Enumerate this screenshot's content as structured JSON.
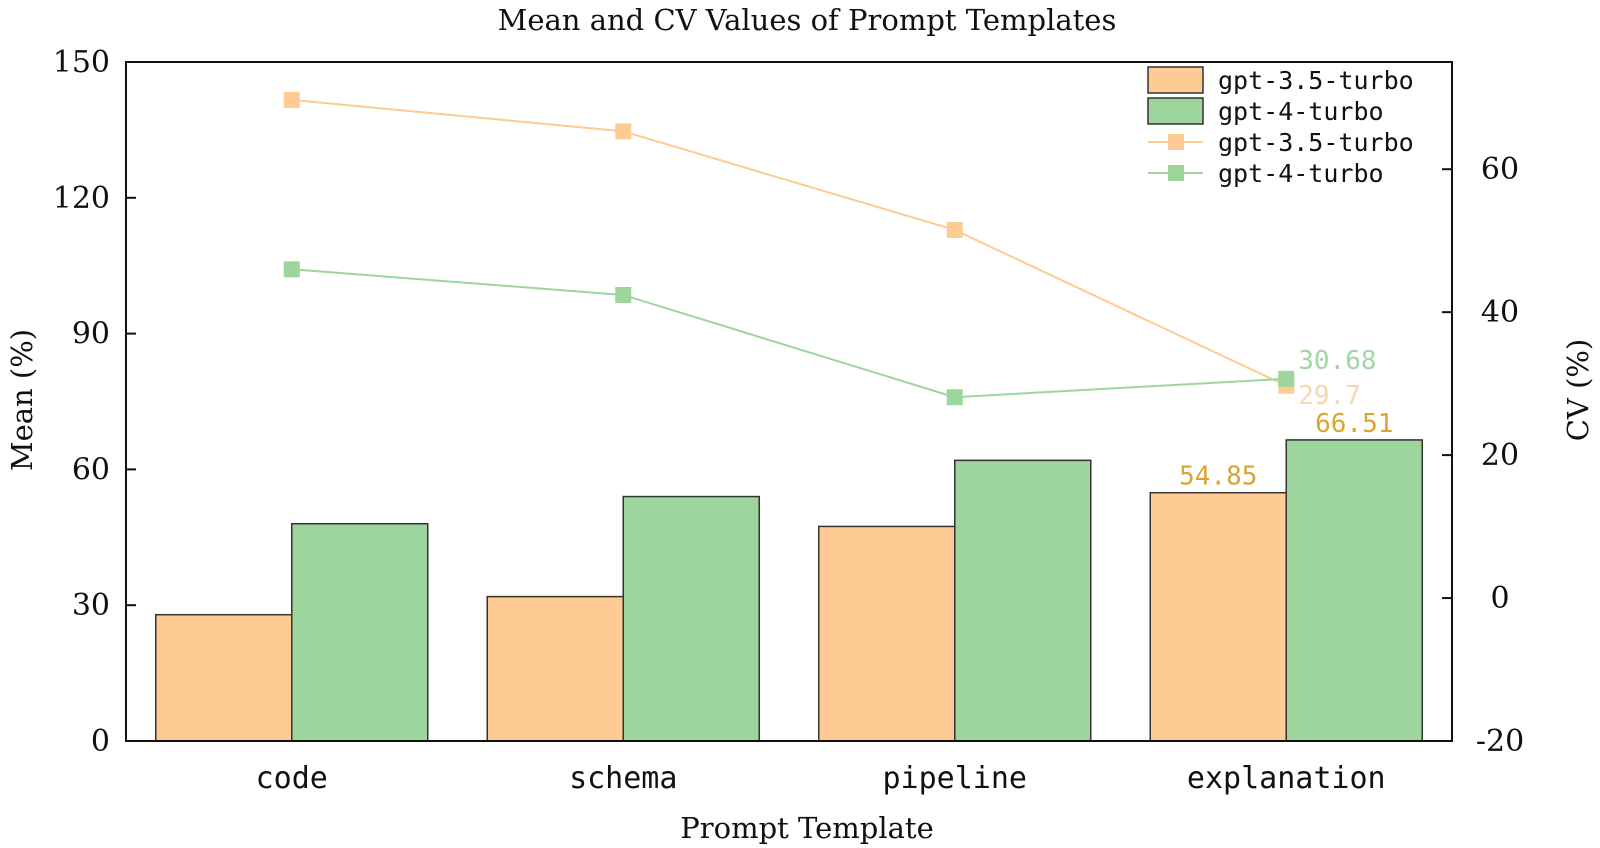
{
  "chart_data": {
    "type": "bar",
    "title": "Mean and CV Values of Prompt Templates",
    "xlabel": "Prompt Template",
    "ylabel": "Mean (%)",
    "y2label": "CV (%)",
    "categories": [
      "code",
      "schema",
      "pipeline",
      "explanation"
    ],
    "ylim": [
      0,
      150
    ],
    "yticks": [
      0,
      30,
      60,
      90,
      120,
      150
    ],
    "y2lim": [
      -20,
      75
    ],
    "y2ticks": [
      -20,
      0,
      20,
      40,
      60
    ],
    "bar_series": [
      {
        "name": "gpt-3.5-turbo",
        "values": [
          27.9,
          31.9,
          47.4,
          54.85
        ],
        "color": "#fdcb93"
      },
      {
        "name": "gpt-4-turbo",
        "values": [
          48.0,
          54.0,
          62.0,
          66.51
        ],
        "color": "#9dd59c"
      }
    ],
    "line_series": [
      {
        "name": "gpt-3.5-turbo",
        "values": [
          69.7,
          65.3,
          51.5,
          29.7
        ],
        "color": "#fdcb93"
      },
      {
        "name": "gpt-4-turbo",
        "values": [
          46.0,
          42.4,
          28.1,
          30.68
        ],
        "color": "#9dd59c"
      }
    ],
    "bar_labels": [
      {
        "series": 0,
        "index": 3,
        "text": "54.85",
        "color": "#d9a531"
      },
      {
        "series": 1,
        "index": 3,
        "text": "66.51",
        "color": "#d9a531"
      }
    ],
    "line_labels": [
      {
        "series": 1,
        "index": 3,
        "text": "30.68",
        "color": "#a3d6a2"
      },
      {
        "series": 0,
        "index": 3,
        "text": "29.7",
        "color": "#f7d8ad"
      }
    ],
    "legend": {
      "position": "top-right",
      "entries": [
        {
          "kind": "bar",
          "label": "gpt-3.5-turbo",
          "color": "#fdcb93"
        },
        {
          "kind": "bar",
          "label": "gpt-4-turbo",
          "color": "#9dd59c"
        },
        {
          "kind": "line",
          "label": "gpt-3.5-turbo",
          "color": "#fdcb93"
        },
        {
          "kind": "line",
          "label": "gpt-4-turbo",
          "color": "#9dd59c"
        }
      ]
    }
  }
}
